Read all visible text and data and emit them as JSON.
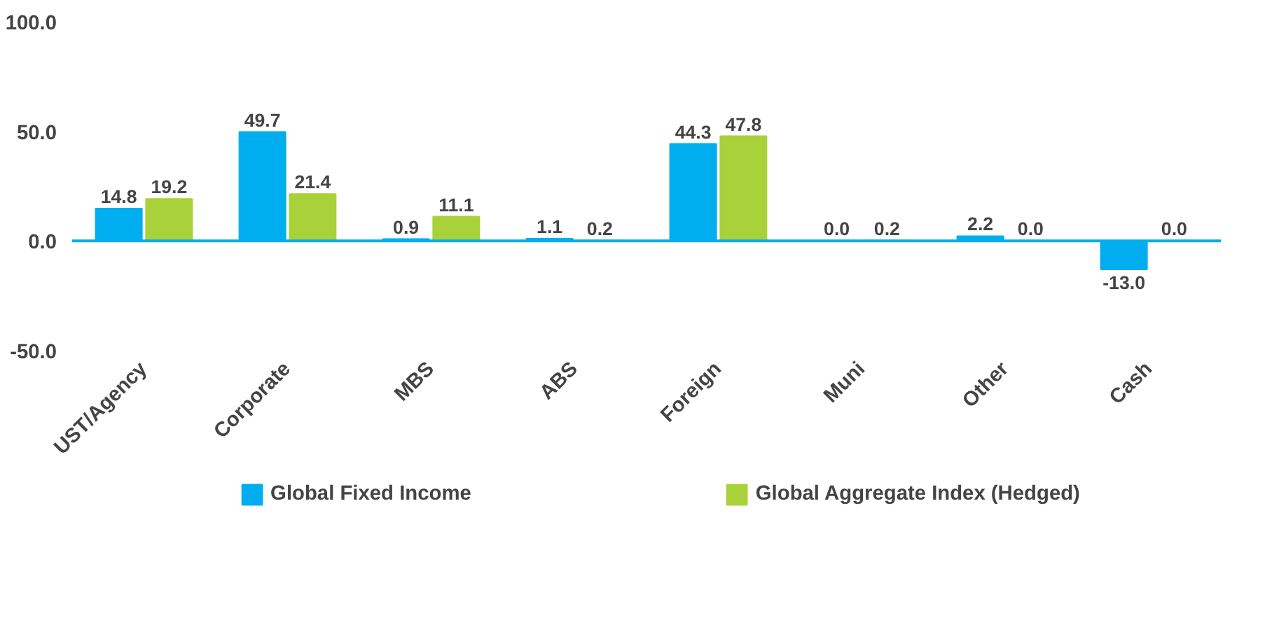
{
  "chart_data": {
    "type": "bar",
    "categories": [
      "UST/Agency",
      "Corporate",
      "MBS",
      "ABS",
      "Foreign",
      "Muni",
      "Other",
      "Cash"
    ],
    "series": [
      {
        "name": "Global Fixed Income",
        "color": "#00aeef",
        "values": [
          14.8,
          49.7,
          0.9,
          1.1,
          44.3,
          0.0,
          2.2,
          -13.0
        ],
        "value_labels": [
          "14.8",
          "49.7",
          "0.9",
          "1.1",
          "44.3",
          "0.0",
          "2.2",
          "-13.0"
        ]
      },
      {
        "name": "Global Aggregate Index (Hedged)",
        "color": "#a8d13a",
        "values": [
          19.2,
          21.4,
          11.1,
          0.2,
          47.8,
          0.2,
          0.0,
          0.0
        ],
        "value_labels": [
          "19.2",
          "21.4",
          "11.1",
          "0.2",
          "47.8",
          "0.2",
          "0.0",
          "0.0"
        ]
      }
    ],
    "ylim": [
      -50,
      100
    ],
    "yticks": [
      {
        "value": -50,
        "label": "-50.0"
      },
      {
        "value": 0,
        "label": "0.0"
      },
      {
        "value": 50,
        "label": "50.0"
      },
      {
        "value": 100,
        "label": "100.0"
      }
    ],
    "ref_lines": [
      {
        "axis": "y",
        "value": 0,
        "color": "#00aeef"
      }
    ],
    "grid": false,
    "legend": "bottom"
  }
}
